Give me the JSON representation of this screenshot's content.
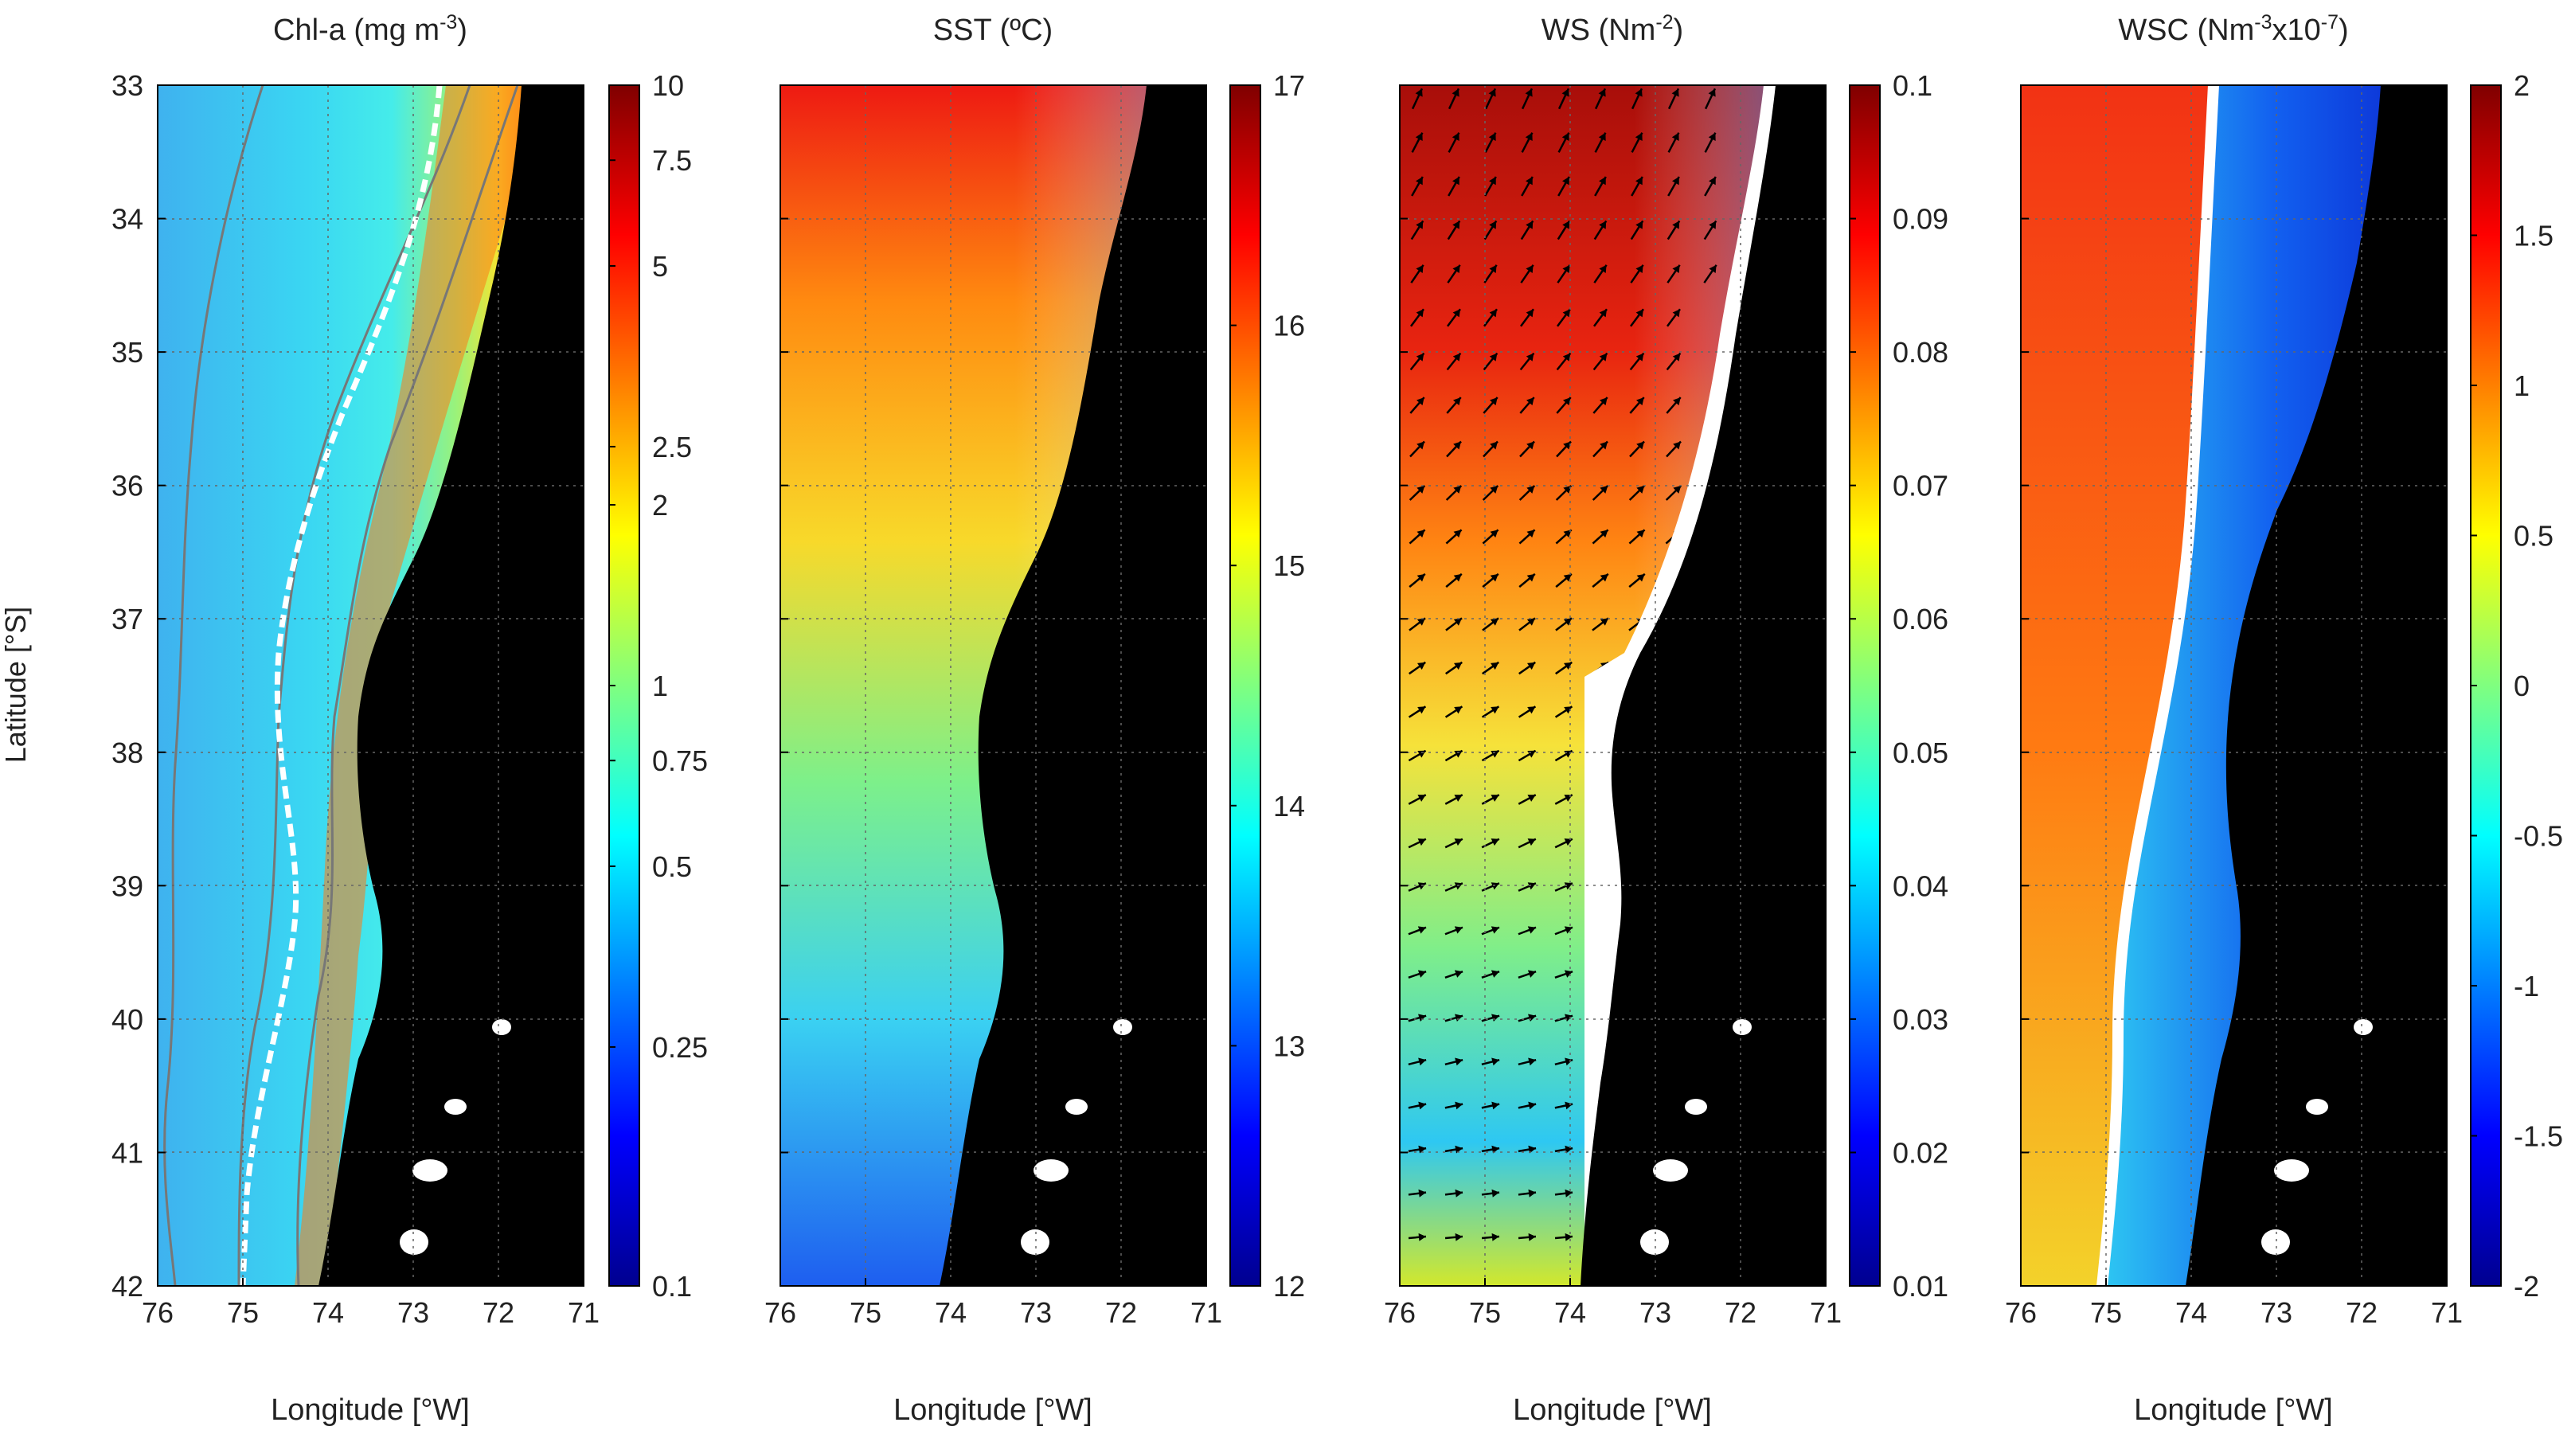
{
  "figure": {
    "ylabel": "Latitude [°S]",
    "xlabel": "Longitude [°W]"
  },
  "chart_data": [
    {
      "type": "heatmap",
      "title": "Chl-a (mg m-3)",
      "title_base": "Chl-a (mg m",
      "title_sup": "-3",
      "title_end": ")",
      "xlabel": "Longitude [°W]",
      "ylabel": "Latitude [°S]",
      "xlim": [
        76,
        71
      ],
      "ylim": [
        42,
        33
      ],
      "xticks": [
        "76",
        "75",
        "74",
        "73",
        "72",
        "71"
      ],
      "yticks": [
        "33",
        "34",
        "35",
        "36",
        "37",
        "38",
        "39",
        "40",
        "41",
        "42"
      ],
      "colorbar": {
        "scale": "log",
        "range": [
          0.1,
          10
        ],
        "ticks": [
          "10",
          "7.5",
          "5",
          "2.5",
          "2",
          "1",
          "0.75",
          "0.5",
          "0.25",
          "0.1"
        ],
        "tick_values": [
          10,
          7.5,
          5,
          2.5,
          2,
          1,
          0.75,
          0.5,
          0.25,
          0.1
        ]
      },
      "grid": true,
      "contours": true
    },
    {
      "type": "heatmap",
      "title": "SST (ºC)",
      "title_base": "SST (ºC)",
      "title_sup": "",
      "title_end": "",
      "xlabel": "Longitude [°W]",
      "xlim": [
        76,
        71
      ],
      "ylim": [
        42,
        33
      ],
      "xticks": [
        "76",
        "75",
        "74",
        "73",
        "72",
        "71"
      ],
      "colorbar": {
        "scale": "linear",
        "range": [
          12,
          17
        ],
        "ticks": [
          "17",
          "16",
          "15",
          "14",
          "13",
          "12"
        ],
        "tick_values": [
          17,
          16,
          15,
          14,
          13,
          12
        ]
      },
      "grid": true
    },
    {
      "type": "heatmap",
      "title": "WS (Nm-2)",
      "title_base": "WS (Nm",
      "title_sup": "-2",
      "title_end": ")",
      "xlabel": "Longitude [°W]",
      "xlim": [
        76,
        71
      ],
      "ylim": [
        42,
        33
      ],
      "xticks": [
        "76",
        "75",
        "74",
        "73",
        "72",
        "71"
      ],
      "colorbar": {
        "scale": "linear",
        "range": [
          0.01,
          0.1
        ],
        "ticks": [
          "0.1",
          "0.09",
          "0.08",
          "0.07",
          "0.06",
          "0.05",
          "0.04",
          "0.03",
          "0.02",
          "0.01"
        ],
        "tick_values": [
          0.1,
          0.09,
          0.08,
          0.07,
          0.06,
          0.05,
          0.04,
          0.03,
          0.02,
          0.01
        ]
      },
      "grid": true,
      "vectors": "wind stress arrows"
    },
    {
      "type": "heatmap",
      "title": "WSC (Nm-3x10-7)",
      "title_base": "WSC (Nm",
      "title_sup": "-3",
      "title_mid": "x10",
      "title_sup2": "-7",
      "title_end": ")",
      "xlabel": "Longitude [°W]",
      "xlim": [
        76,
        71
      ],
      "ylim": [
        42,
        33
      ],
      "xticks": [
        "76",
        "75",
        "74",
        "73",
        "72",
        "71"
      ],
      "colorbar": {
        "scale": "linear",
        "range": [
          -2,
          2
        ],
        "ticks": [
          "2",
          "1.5",
          "1",
          "0.5",
          "0",
          "-0.5",
          "-1",
          "-1.5",
          "-2"
        ],
        "tick_values": [
          2,
          1.5,
          1,
          0.5,
          0,
          -0.5,
          -1,
          -1.5,
          -2
        ]
      },
      "grid": true,
      "zero_contour": true
    }
  ]
}
